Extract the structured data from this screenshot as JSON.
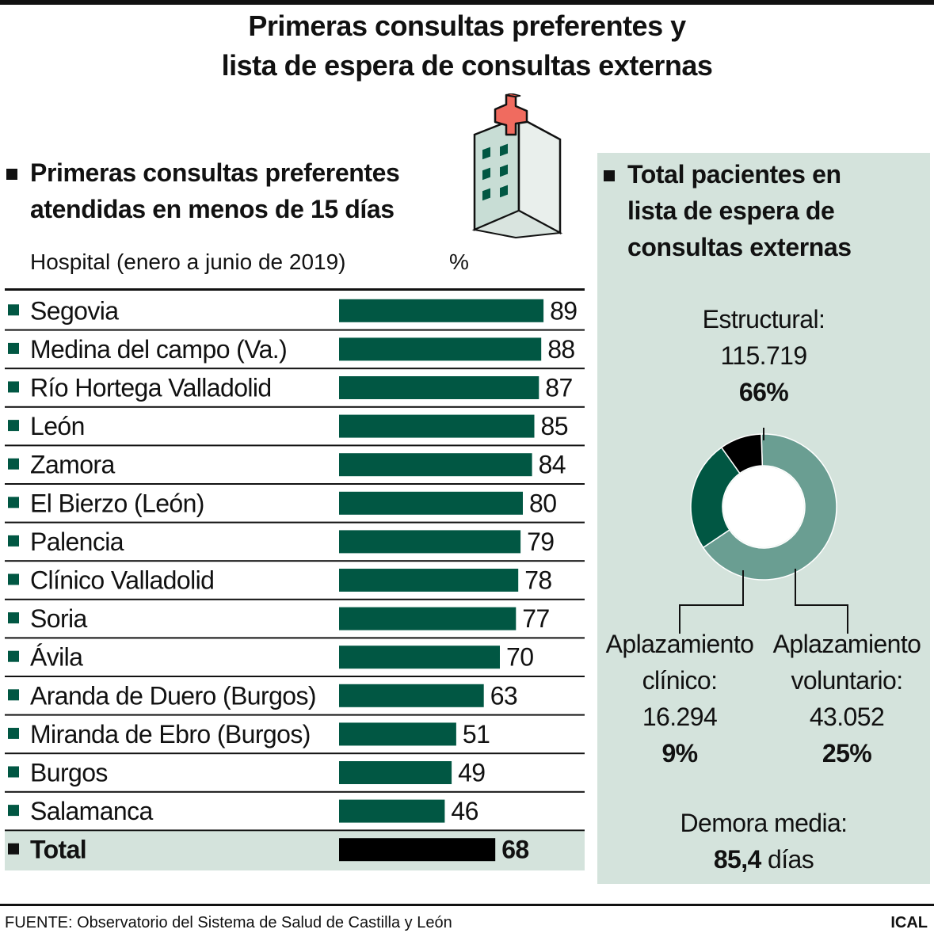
{
  "title": {
    "line1": "Primeras consultas preferentes y",
    "line2": "lista de espera de consultas externas"
  },
  "left": {
    "heading_line1": "Primeras consultas preferentes",
    "heading_line2": "atendidas en menos de 15 días",
    "col_hospital": "Hospital (enero a junio de 2019)",
    "col_unit": "%"
  },
  "right": {
    "heading_line1": "Total pacientes en",
    "heading_line2": "lista de espera de",
    "heading_line3": "consultas externas",
    "estructural": {
      "label": "Estructural:",
      "value": "115.719",
      "pct": "66%"
    },
    "clinico": {
      "label_line1": "Aplazamiento",
      "label_line2": "clínico:",
      "value": "16.294",
      "pct": "9%"
    },
    "voluntario": {
      "label_line1": "Aplazamiento",
      "label_line2": "voluntario:",
      "value": "43.052",
      "pct": "25%"
    },
    "demora": {
      "label": "Demora media:",
      "value": "85,4",
      "unit": "días"
    }
  },
  "footer": {
    "source": "FUENTE: Observatorio del Sistema de Salud de Castilla y León",
    "brand": "ICAL"
  },
  "colors": {
    "bar": "#015743",
    "total_bar": "#000000",
    "panel_bg": "#d4e3dc",
    "donut_estructural": "#6a9e92",
    "donut_voluntario": "#015743",
    "donut_clinico": "#000000",
    "icon_red": "#f06b5f",
    "icon_wall": "#c8ddd5"
  },
  "icons": [
    "hospital-building-icon"
  ],
  "chart_data": [
    {
      "type": "bar",
      "orientation": "horizontal",
      "categories": [
        "Segovia",
        "Medina del campo (Va.)",
        "Río Hortega Valladolid",
        "León",
        "Zamora",
        "El Bierzo (León)",
        "Palencia",
        "Clínico Valladolid",
        "Soria",
        "Ávila",
        "Aranda de Duero (Burgos)",
        "Miranda de Ebro (Burgos)",
        "Burgos",
        "Salamanca",
        "Total"
      ],
      "values": [
        89,
        88,
        87,
        85,
        84,
        80,
        79,
        78,
        77,
        70,
        63,
        51,
        49,
        46,
        68
      ],
      "highlight_category": "Total",
      "xlim": [
        0,
        100
      ]
    },
    {
      "type": "pie",
      "style": "donut",
      "labels": [
        "Estructural",
        "Aplazamiento voluntario",
        "Aplazamiento clínico"
      ],
      "values": [
        115719,
        43052,
        16294
      ],
      "percents": [
        66,
        25,
        9
      ]
    }
  ]
}
